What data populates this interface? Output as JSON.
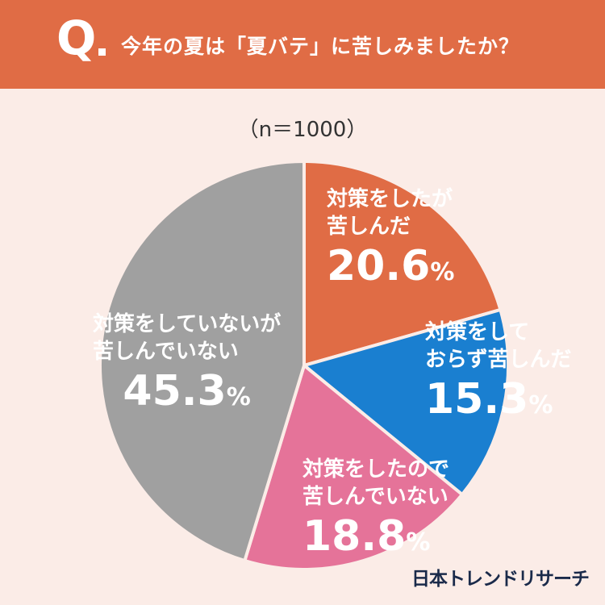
{
  "header": {
    "q": "Q",
    "question": "今年の夏は「夏バテ」に苦しみましたか？"
  },
  "sample": "（n＝1000）",
  "chart_data": {
    "type": "pie",
    "slices": [
      {
        "label": "対策をしたが苦しんだ",
        "line1": "対策をしたが",
        "line2": "苦しんだ",
        "value": 20.6,
        "color": "#e06c45",
        "text_color": "#ffffff",
        "pct_num": "20.6",
        "pct_unit": "%"
      },
      {
        "label": "対策をしておらず苦しんだ",
        "line1": "対策をして",
        "line2": "おらず苦しんだ",
        "value": 15.3,
        "color": "#1a7fd0",
        "text_color": "#ffffff",
        "pct_num": "15.3",
        "pct_unit": "%"
      },
      {
        "label": "対策をしたので苦しんでいない",
        "line1": "対策をしたので",
        "line2": "苦しんでいない",
        "value": 18.8,
        "color": "#e57399",
        "text_color": "#ffffff",
        "pct_num": "18.8",
        "pct_unit": "%"
      },
      {
        "label": "対策をしていないが苦しんでいない",
        "line1": "対策をしていないが",
        "line2": "苦しんでいない",
        "value": 45.3,
        "color": "#a0a0a0",
        "text_color": "#ffffff",
        "pct_num": "45.3",
        "pct_unit": "%"
      }
    ]
  },
  "logo": "日本トレンドリサーチ"
}
